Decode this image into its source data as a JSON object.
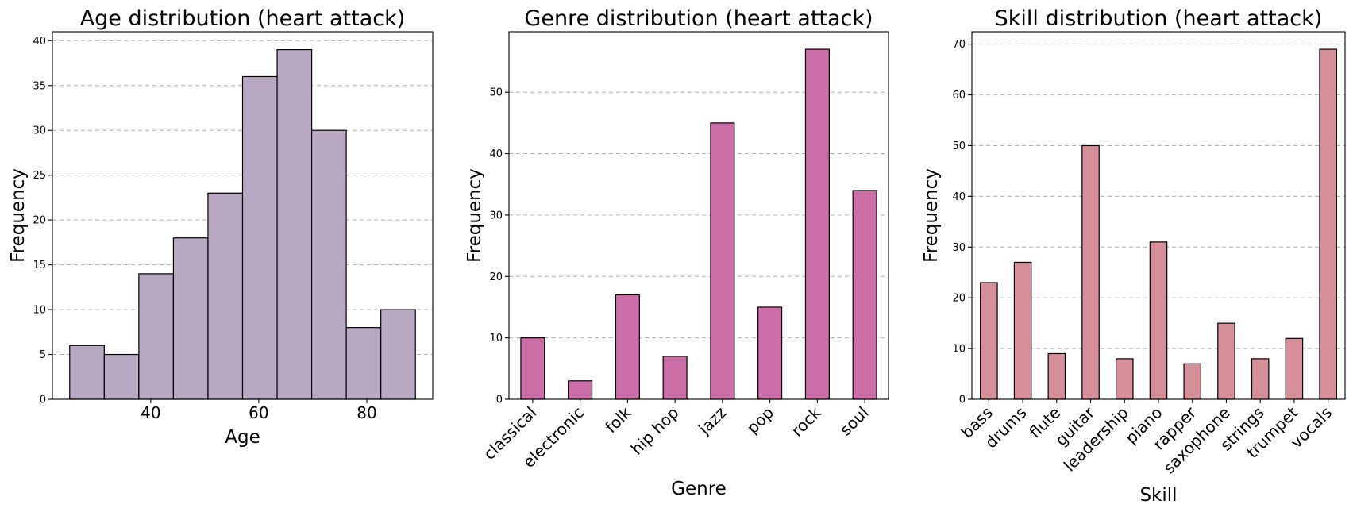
{
  "chart_data": [
    {
      "type": "bar",
      "subtype": "histogram",
      "title": "Age distribution (heart attack)",
      "xlabel": "Age",
      "ylabel": "Frequency",
      "color": "#b9a8c2",
      "bins": [
        {
          "start": 25.0,
          "end": 31.4,
          "count": 6
        },
        {
          "start": 31.4,
          "end": 37.8,
          "count": 5
        },
        {
          "start": 37.8,
          "end": 44.2,
          "count": 14
        },
        {
          "start": 44.2,
          "end": 50.6,
          "count": 18
        },
        {
          "start": 50.6,
          "end": 57.0,
          "count": 23
        },
        {
          "start": 57.0,
          "end": 63.4,
          "count": 36
        },
        {
          "start": 63.4,
          "end": 69.8,
          "count": 39
        },
        {
          "start": 69.8,
          "end": 76.2,
          "count": 30
        },
        {
          "start": 76.2,
          "end": 82.6,
          "count": 8
        },
        {
          "start": 82.6,
          "end": 89.0,
          "count": 10
        }
      ],
      "xlim": [
        21.8,
        92.2
      ],
      "xticks": [
        "40",
        "60",
        "80"
      ],
      "xtick_values": [
        40,
        60,
        80
      ],
      "ylim": [
        0,
        41
      ],
      "yticks": [
        "0",
        "5",
        "10",
        "15",
        "20",
        "25",
        "30",
        "35",
        "40"
      ],
      "ytick_values": [
        0,
        5,
        10,
        15,
        20,
        25,
        30,
        35,
        40
      ],
      "grid": "y-dashed"
    },
    {
      "type": "bar",
      "title": "Genre distribution (heart attack)",
      "xlabel": "Genre",
      "ylabel": "Frequency",
      "color": "#cc6fa8",
      "categories": [
        "classical",
        "electronic",
        "folk",
        "hip hop",
        "jazz",
        "pop",
        "rock",
        "soul"
      ],
      "values": [
        10,
        3,
        17,
        7,
        45,
        15,
        57,
        34
      ],
      "ylim": [
        0,
        59.85
      ],
      "yticks": [
        "0",
        "10",
        "20",
        "30",
        "40",
        "50"
      ],
      "ytick_values": [
        0,
        10,
        20,
        30,
        40,
        50
      ],
      "grid": "y-dashed"
    },
    {
      "type": "bar",
      "title": "Skill distribution (heart attack)",
      "xlabel": "Skill",
      "ylabel": "Frequency",
      "color": "#d58f98",
      "categories": [
        "bass",
        "drums",
        "flute",
        "guitar",
        "leadership",
        "piano",
        "rapper",
        "saxophone",
        "strings",
        "trumpet",
        "vocals"
      ],
      "values": [
        23,
        27,
        9,
        50,
        8,
        31,
        7,
        15,
        8,
        12,
        69
      ],
      "ylim": [
        0,
        72.45
      ],
      "yticks": [
        "0",
        "10",
        "20",
        "30",
        "40",
        "50",
        "60",
        "70"
      ],
      "ytick_values": [
        0,
        10,
        20,
        30,
        40,
        50,
        60,
        70
      ],
      "grid": "y-dashed"
    }
  ]
}
